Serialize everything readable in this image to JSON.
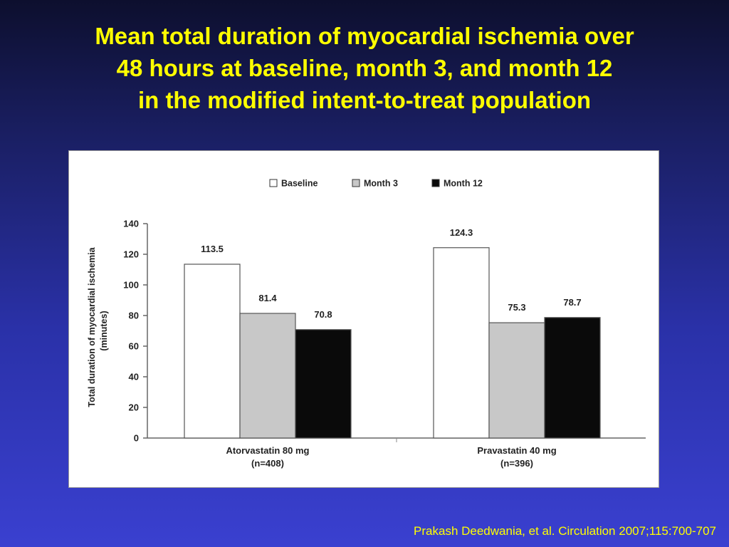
{
  "slide": {
    "title_lines": [
      "Mean total duration of myocardial ischemia over",
      "48 hours at baseline, month 3, and month 12",
      "in the modified intent-to-treat population"
    ],
    "citation": "Prakash Deedwania, et al. Circulation 2007;115:700-707",
    "colors": {
      "title": "#ffff00",
      "background_top": "#0d0f2e",
      "background_bottom": "#3a40d0"
    }
  },
  "chart_data": {
    "type": "bar",
    "categories": [
      [
        "Atorvastatin 80 mg",
        "(n=408)"
      ],
      [
        "Pravastatin 40 mg",
        "(n=396)"
      ]
    ],
    "series": [
      {
        "name": "Baseline",
        "values": [
          113.5,
          124.3
        ],
        "color": "#ffffff"
      },
      {
        "name": "Month 3",
        "values": [
          81.4,
          75.3
        ],
        "color": "#c8c8c8"
      },
      {
        "name": "Month 12",
        "values": [
          70.8,
          78.7
        ],
        "color": "#0a0a0a"
      }
    ],
    "value_labels": [
      [
        "113.5",
        "124.3"
      ],
      [
        "81.4",
        "75.3"
      ],
      [
        "70.8",
        "78.7"
      ]
    ],
    "ylabel": [
      "Total duration of myocardial ischemia",
      "(minutes)"
    ],
    "ylim": [
      0,
      140
    ],
    "yticks": [
      0,
      20,
      40,
      60,
      80,
      100,
      120,
      140
    ],
    "grid": false,
    "legend_position": "top-center"
  }
}
